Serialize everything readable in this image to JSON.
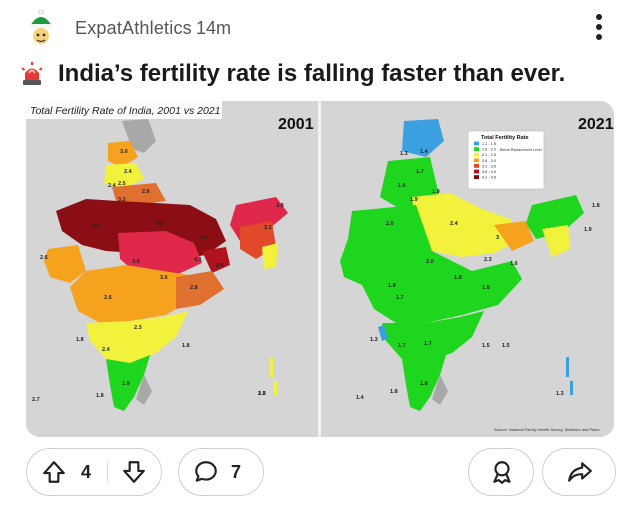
{
  "post": {
    "author": "ExpatAthletics",
    "time": "14m",
    "title": "India’s fertility rate is falling faster than ever."
  },
  "image": {
    "caption": "Total Fertility Rate of India, 2001 vs 2021",
    "left_year": "2001",
    "right_year": "2021",
    "legend_title": "Total Fertility Rate",
    "legend_items": [
      "1.1 - 1.5",
      "1.6 - 2.0",
      "2.1 - 2.5",
      "2.6 - 3.0",
      "3.1 - 3.5",
      "3.6 - 4.0",
      "4.1 - 4.5"
    ],
    "legend_note": "Below Replacement Level",
    "legend_colors": [
      "#3aa0e0",
      "#1ed61e",
      "#f2f23c",
      "#f5a21e",
      "#e04a2a",
      "#b0121e",
      "#7a0a0a"
    ],
    "source": "Source: National Family Health Survey, Statistics and Plans",
    "labels_2001": [
      "3.0",
      "2.4",
      "2.4",
      "2.5",
      "2.6",
      "3.2",
      "4.2",
      "4.4",
      "4.5",
      "3.8",
      "3.2",
      "2.6",
      "3.9",
      "4.1",
      "2.6",
      "3.6",
      "2.8",
      "2.6",
      "2.3",
      "1.8",
      "1.8",
      "1.8",
      "2.4",
      "1.9",
      "2.7",
      "1.8",
      "2.3"
    ],
    "labels_2021": [
      "1.3",
      "1.4",
      "1.7",
      "1.6",
      "1.9",
      "1.9",
      "2.0",
      "2.4",
      "3",
      "1.8",
      "1.9",
      "2.0",
      "2.3",
      "1.6",
      "1.8",
      "1.8",
      "1.7",
      "1.5",
      "1.7",
      "1.8",
      "1.3",
      "1.4",
      "1.8",
      "1.3",
      "1.5",
      "1.7",
      "1.9"
    ]
  },
  "actions": {
    "upvotes": "4",
    "comments": "7"
  }
}
